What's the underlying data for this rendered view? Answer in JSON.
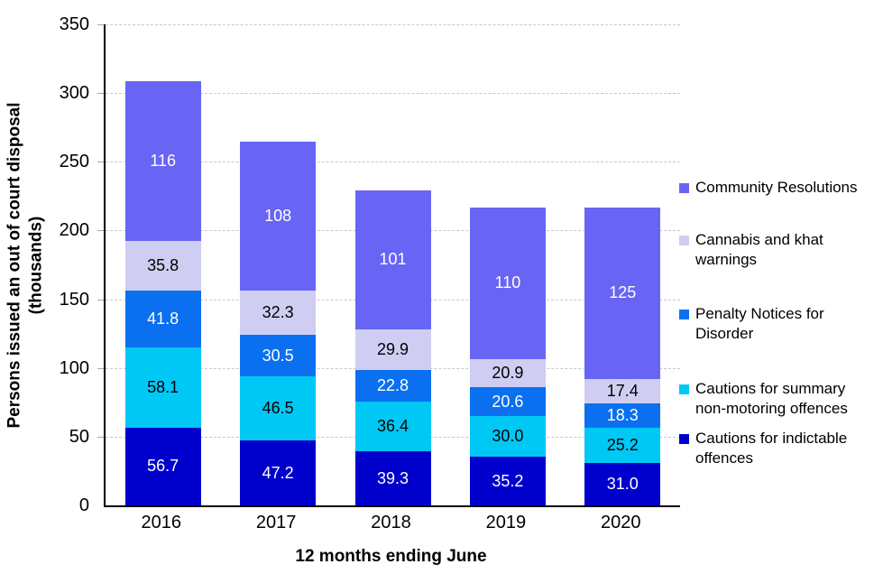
{
  "chart_data": {
    "type": "bar",
    "stacked": true,
    "title": "",
    "xlabel": "12 months ending June",
    "ylabel": "Persons issued an out of court disposal\n(thousands)",
    "categories": [
      "2016",
      "2017",
      "2018",
      "2019",
      "2020"
    ],
    "series": [
      {
        "name": "Cautions for indictable offences",
        "color": "#0000CD",
        "label_color": "#FFFFFF",
        "values": [
          56.7,
          47.2,
          39.3,
          35.2,
          31.0
        ],
        "labels": [
          "56.7",
          "47.2",
          "39.3",
          "35.2",
          "31.0"
        ]
      },
      {
        "name": "Cautions for summary non-motoring offences",
        "color": "#00C8F5",
        "label_color": "#000000",
        "values": [
          58.1,
          46.5,
          36.4,
          30.0,
          25.2
        ],
        "labels": [
          "58.1",
          "46.5",
          "36.4",
          "30.0",
          "25.2"
        ]
      },
      {
        "name": "Penalty Notices for Disorder",
        "color": "#0A70F0",
        "label_color": "#FFFFFF",
        "values": [
          41.8,
          30.5,
          22.8,
          20.6,
          18.3
        ],
        "labels": [
          "41.8",
          "30.5",
          "22.8",
          "20.6",
          "18.3"
        ]
      },
      {
        "name": "Cannabis and khat warnings",
        "color": "#CFCDF2",
        "label_color": "#000000",
        "values": [
          35.8,
          32.3,
          29.9,
          20.9,
          17.4
        ],
        "labels": [
          "35.8",
          "32.3",
          "29.9",
          "20.9",
          "17.4"
        ]
      },
      {
        "name": "Community Resolutions",
        "color": "#6865F5",
        "label_color": "#FFFFFF",
        "values": [
          116,
          108,
          101,
          110,
          125
        ],
        "labels": [
          "116",
          "108",
          "101",
          "110",
          "125"
        ]
      }
    ],
    "legend_order_top_to_bottom": [
      "Community Resolutions",
      "Cannabis and khat warnings",
      "Penalty Notices for Disorder",
      "Cautions for summary non-motoring offences",
      "Cautions for indictable offences"
    ],
    "legend_position": "right",
    "y_axis": {
      "min": 0,
      "max": 350,
      "tick_interval": 50,
      "tick_labels": [
        "350",
        "300",
        "250",
        "200",
        "150",
        "100",
        "50",
        "0"
      ]
    },
    "grid": {
      "horizontal": true,
      "style": "dashed",
      "color": "#c9c9c9"
    },
    "axis_color": "#000000",
    "background_color": "#ffffff"
  }
}
